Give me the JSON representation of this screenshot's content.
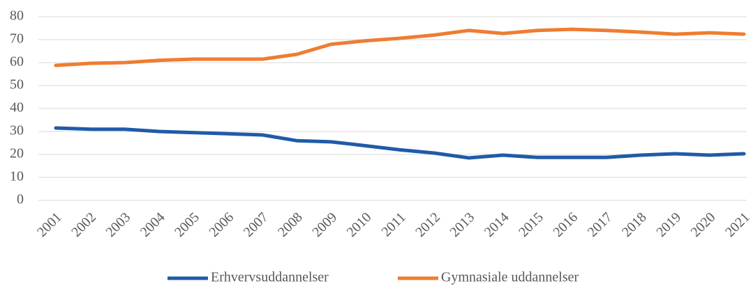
{
  "chart_data": {
    "type": "line",
    "categories": [
      "2001",
      "2002",
      "2003",
      "2004",
      "2005",
      "2006",
      "2007",
      "2008",
      "2009",
      "2010",
      "2011",
      "2012",
      "2013",
      "2014",
      "2015",
      "2016",
      "2017",
      "2018",
      "2019",
      "2020",
      "2021"
    ],
    "series": [
      {
        "name": "Erhvervsuddannelser",
        "color": "#1f5ba8",
        "values": [
          31.5,
          31,
          31,
          30,
          29.5,
          29,
          28.5,
          26,
          25.5,
          23.8,
          22,
          20.6,
          18.5,
          19.7,
          18.7,
          18.7,
          18.7,
          19.7,
          20.3,
          19.7,
          20.3
        ]
      },
      {
        "name": "Gymnasiale uddannelser",
        "color": "#ee7d31",
        "values": [
          58.8,
          59.7,
          60,
          61,
          61.5,
          61.5,
          61.5,
          63.6,
          68,
          69.5,
          70.6,
          72,
          74,
          72.7,
          74,
          74.5,
          74,
          73.3,
          72.4,
          73,
          72.4
        ]
      }
    ],
    "ylim": [
      0,
      80
    ],
    "yticks": [
      0,
      10,
      20,
      30,
      40,
      50,
      60,
      70,
      80
    ],
    "grid": true,
    "legend": "bottom"
  }
}
